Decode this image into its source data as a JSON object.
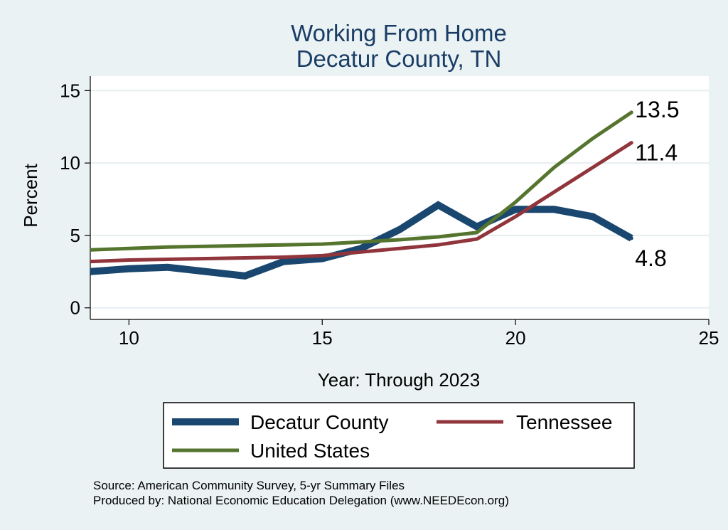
{
  "chart_data": {
    "type": "line",
    "title": [
      "Working From Home",
      "Decatur County, TN"
    ],
    "xlabel": "Year: Through 2023",
    "ylabel": "Percent",
    "xlim": [
      9,
      25
    ],
    "ylim": [
      -0.8,
      16
    ],
    "xticks": [
      10,
      15,
      20,
      25
    ],
    "yticks": [
      0,
      5,
      10,
      15
    ],
    "grid": "horizontal",
    "series": [
      {
        "name": "Decatur County",
        "color": "#1a476f",
        "x": [
          9,
          10,
          11,
          12,
          13,
          14,
          15,
          16,
          17,
          18,
          19,
          20,
          21,
          22,
          23
        ],
        "values": [
          2.5,
          2.7,
          2.8,
          2.5,
          2.2,
          3.2,
          3.4,
          4.1,
          5.4,
          7.1,
          5.6,
          6.8,
          6.8,
          6.3,
          4.8
        ],
        "end_label": "4.8"
      },
      {
        "name": "Tennessee",
        "color": "#90353b",
        "x": [
          9,
          10,
          11,
          12,
          13,
          14,
          15,
          16,
          17,
          18,
          19,
          20,
          21,
          22,
          23
        ],
        "values": [
          3.2,
          3.3,
          3.35,
          3.4,
          3.45,
          3.5,
          3.6,
          3.85,
          4.1,
          4.35,
          4.75,
          6.3,
          8.0,
          9.7,
          11.4
        ],
        "end_label": "11.4"
      },
      {
        "name": "United States",
        "color": "#55752f",
        "x": [
          9,
          10,
          11,
          12,
          13,
          14,
          15,
          16,
          17,
          18,
          19,
          20,
          21,
          22,
          23
        ],
        "values": [
          4.0,
          4.1,
          4.2,
          4.25,
          4.3,
          4.35,
          4.4,
          4.55,
          4.7,
          4.9,
          5.2,
          7.3,
          9.7,
          11.7,
          13.5
        ],
        "end_label": "13.5"
      }
    ],
    "legend": [
      "Decatur County",
      "Tennessee",
      "United States"
    ],
    "notes": [
      "Source: American Community Survey, 5-yr Summary Files",
      "Produced by: National Economic Education Delegation (www.NEEDEcon.org)"
    ]
  }
}
